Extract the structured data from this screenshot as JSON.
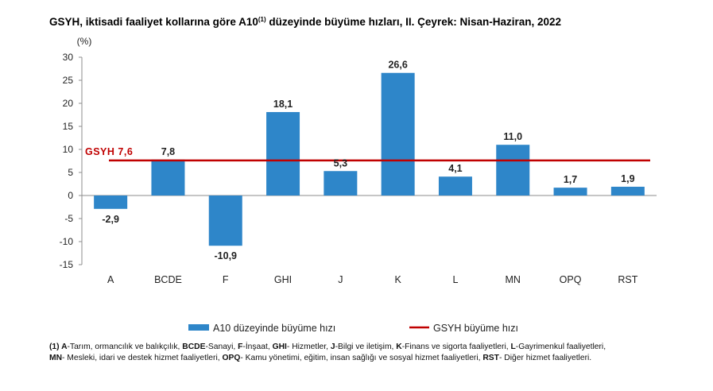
{
  "title": {
    "before": "GSYH, iktisadi faaliyet kollarına göre A10",
    "marker": "(1)",
    "after": " düzeyinde büyüme hızları, II. Çeyrek: Nisan-Haziran, 2022"
  },
  "colors": {
    "bar": "#2e86c9",
    "reference": "#c00000",
    "axis": "#8c8c8c"
  },
  "chart_data": {
    "type": "bar",
    "ylabel": "(%)",
    "ylim": [
      -15,
      30
    ],
    "yticks": [
      30,
      25,
      20,
      15,
      10,
      5,
      0,
      -5,
      -10,
      -15
    ],
    "categories": [
      "A",
      "BCDE",
      "F",
      "GHI",
      "J",
      "K",
      "L",
      "MN",
      "OPQ",
      "RST"
    ],
    "series": [
      {
        "name": "A10 düzeyinde büyüme hızı",
        "values": [
          -2.9,
          7.8,
          -10.9,
          18.1,
          5.3,
          26.6,
          4.1,
          11.0,
          1.7,
          1.9
        ],
        "labels": [
          "-2,9",
          "7,8",
          "-10,9",
          "18,1",
          "5,3",
          "26,6",
          "4,1",
          "11,0",
          "1,7",
          "1,9"
        ]
      }
    ],
    "reference_line": {
      "name": "GSYH büyüme hızı",
      "value": 7.6,
      "label": "GSYH 7,6"
    },
    "grid": false,
    "legend": "bottom"
  },
  "footnote": [
    [
      {
        "b": "(1) A"
      },
      {
        "t": "-Tarım, ormancılık ve balıkçılık, "
      },
      {
        "b": "BCDE"
      },
      {
        "t": "-Sanayi, "
      },
      {
        "b": "F"
      },
      {
        "t": "-İnşaat, "
      },
      {
        "b": "GHI"
      },
      {
        "t": "- Hizmetler, "
      },
      {
        "b": "J"
      },
      {
        "t": "-Bilgi ve iletişim, "
      },
      {
        "b": "K"
      },
      {
        "t": "-Finans ve sigorta faaliyetleri, "
      },
      {
        "b": "L"
      },
      {
        "t": "-Gayrimenkul faaliyetleri,"
      }
    ],
    [
      {
        "b": "MN"
      },
      {
        "t": "- Mesleki, idari ve destek hizmet faaliyetleri, "
      },
      {
        "b": "OPQ"
      },
      {
        "t": "- Kamu yönetimi, eğitim, insan sağlığı ve sosyal hizmet faaliyetleri, "
      },
      {
        "b": "RST"
      },
      {
        "t": "- Diğer hizmet faaliyetleri."
      }
    ]
  ]
}
